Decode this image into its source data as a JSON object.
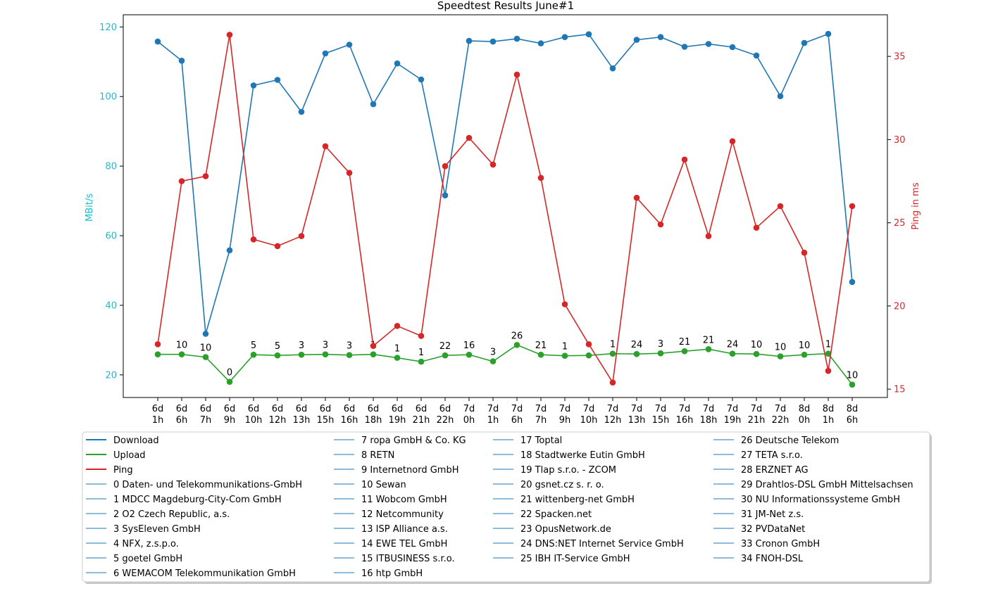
{
  "chart_data": {
    "type": "line",
    "title": "Speedtest Results June#1",
    "ylabel_left": "MBit/s",
    "ylabel_right": "Ping in ms",
    "left_axis": {
      "ylim": [
        13.5,
        123.5
      ],
      "ticks": [
        20,
        40,
        60,
        80,
        100,
        120
      ],
      "color": "#17becf"
    },
    "right_axis": {
      "ylim": [
        14.5,
        37.5
      ],
      "ticks": [
        15,
        20,
        25,
        30,
        35
      ],
      "color": "#d62728"
    },
    "grid": false,
    "categories": [
      [
        "6d",
        "1h"
      ],
      [
        "6d",
        "6h"
      ],
      [
        "6d",
        "7h"
      ],
      [
        "6d",
        "9h"
      ],
      [
        "6d",
        "10h"
      ],
      [
        "6d",
        "12h"
      ],
      [
        "6d",
        "13h"
      ],
      [
        "6d",
        "15h"
      ],
      [
        "6d",
        "16h"
      ],
      [
        "6d",
        "18h"
      ],
      [
        "6d",
        "19h"
      ],
      [
        "6d",
        "21h"
      ],
      [
        "6d",
        "22h"
      ],
      [
        "7d",
        "0h"
      ],
      [
        "7d",
        "1h"
      ],
      [
        "7d",
        "6h"
      ],
      [
        "7d",
        "7h"
      ],
      [
        "7d",
        "9h"
      ],
      [
        "7d",
        "10h"
      ],
      [
        "7d",
        "12h"
      ],
      [
        "7d",
        "13h"
      ],
      [
        "7d",
        "15h"
      ],
      [
        "7d",
        "16h"
      ],
      [
        "7d",
        "18h"
      ],
      [
        "7d",
        "19h"
      ],
      [
        "7d",
        "21h"
      ],
      [
        "7d",
        "22h"
      ],
      [
        "8d",
        "0h"
      ],
      [
        "8d",
        "1h"
      ],
      [
        "8d",
        "6h"
      ]
    ],
    "series": [
      {
        "name": "Download",
        "axis": "left",
        "color": "#1f77b4",
        "values": [
          115.8,
          110.3,
          31.8,
          55.8,
          103.2,
          104.8,
          95.6,
          112.4,
          114.9,
          97.8,
          109.5,
          104.9,
          71.6,
          116.0,
          115.8,
          116.6,
          115.3,
          117.1,
          117.9,
          108.1,
          116.3,
          117.1,
          114.3,
          115.1,
          114.2,
          111.8,
          100.1,
          115.4,
          118.0,
          46.7
        ]
      },
      {
        "name": "Upload",
        "axis": "left",
        "color": "#2ca02c",
        "values": [
          25.9,
          25.9,
          25.1,
          18.0,
          25.8,
          25.6,
          25.8,
          25.9,
          25.7,
          25.9,
          24.9,
          23.8,
          25.6,
          25.8,
          23.9,
          28.6,
          25.8,
          25.5,
          25.6,
          26.1,
          26.0,
          26.2,
          26.8,
          27.4,
          26.1,
          26.0,
          25.3,
          25.8,
          26.1,
          17.2
        ],
        "labels": [
          "",
          "10",
          "10",
          "0",
          "5",
          "5",
          "3",
          "3",
          "3",
          "1",
          "1",
          "1",
          "22",
          "16",
          "3",
          "26",
          "21",
          "1",
          "",
          "1",
          "24",
          "3",
          "21",
          "21",
          "24",
          "10",
          "10",
          "10",
          "1",
          "10"
        ]
      },
      {
        "name": "Ping",
        "axis": "right",
        "color": "#d62728",
        "values": [
          17.7,
          27.5,
          27.8,
          36.3,
          24.0,
          23.6,
          24.2,
          29.6,
          28.0,
          17.6,
          18.8,
          18.2,
          28.4,
          30.1,
          28.5,
          33.9,
          27.7,
          20.1,
          17.7,
          15.4,
          26.5,
          24.9,
          28.8,
          24.2,
          29.9,
          24.7,
          26.0,
          23.2,
          16.1,
          26.0
        ]
      }
    ],
    "legend": {
      "placement": "bottom",
      "columns": [
        [
          "Download",
          "Upload",
          "Ping",
          "0 Daten- und Telekommunikations-GmbH",
          "1 MDCC Magdeburg-City-Com GmbH",
          "2 O2 Czech Republic, a.s.",
          "3 SysEleven GmbH",
          "4 NFX, z.s.p.o.",
          "5 goetel GmbH",
          "6 WEMACOM Telekommunikation GmbH"
        ],
        [
          "7 ropa GmbH & Co. KG",
          "8 RETN",
          "9 Internetnord GmbH",
          "10 Sewan",
          "11 Wobcom GmbH",
          "12 Netcommunity",
          "13 ISP Alliance a.s.",
          "14 EWE TEL GmbH",
          "15 ITBUSINESS s.r.o.",
          "16 htp GmbH"
        ],
        [
          "17 Toptal",
          "18 Stadtwerke Eutin GmbH",
          "19 Tlap s.r.o. - ZCOM",
          "20 gsnet.cz s. r. o.",
          "21 wittenberg-net GmbH",
          "22 Spacken.net",
          "23 OpusNetwork.de",
          "24 DNS:NET Internet Service GmbH",
          "25 IBH IT-Service GmbH"
        ],
        [
          "26 Deutsche Telekom",
          "27 TETA s.r.o.",
          "28 ERZNET AG",
          "29 Drahtlos-DSL GmbH Mittelsachsen",
          "30 NU Informationssysteme GmbH",
          "31 JM-Net z.s.",
          "32 PVDataNet",
          "33 Cronon GmbH",
          "34 FNOH-DSL"
        ]
      ]
    }
  }
}
